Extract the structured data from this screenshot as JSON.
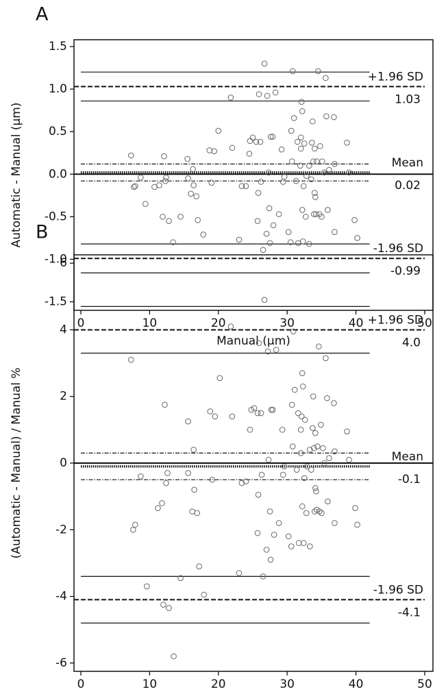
{
  "chart_data": [
    {
      "type": "scatter",
      "title": "A",
      "x_label": "Manual (µm)",
      "y_label": "Automatic - Manual (µm)",
      "xlim": [
        -1,
        51.2
      ],
      "xticks": [
        0,
        10,
        20,
        30,
        40,
        50
      ],
      "ylim": [
        -1.6,
        1.58
      ],
      "yticks": [
        {
          "value": -1.5,
          "label": "-1.5"
        },
        {
          "value": -1,
          "label": "-1.0"
        },
        -0.5,
        {
          "value": 0,
          "label": "0.0"
        },
        0.5,
        {
          "value": 1,
          "label": "1.0"
        },
        1.5
      ],
      "marker": "open-circle",
      "color": "#666666",
      "zero_line": true,
      "ci_xlim": [
        0,
        42
      ],
      "x": [
        7.3,
        7.7,
        7.9,
        8.7,
        9.4,
        10.7,
        11.4,
        11.9,
        12.1,
        12.3,
        12.4,
        12.8,
        13.4,
        14.5,
        15.5,
        15.6,
        16.0,
        16.3,
        16.4,
        16.8,
        17.0,
        17.8,
        18.7,
        19.0,
        19.4,
        20.0,
        21.8,
        22.0,
        23.0,
        23.4,
        24.0,
        24.5,
        24.6,
        25.0,
        25.5,
        25.7,
        25.8,
        25.9,
        26.1,
        26.2,
        26.5,
        26.7,
        27.0,
        27.1,
        27.3,
        27.4,
        27.5,
        27.6,
        27.9,
        28.0,
        28.3,
        28.8,
        29.2,
        29.4,
        29.6,
        30.2,
        30.5,
        30.6,
        30.7,
        30.8,
        31.0,
        31.3,
        31.5,
        31.6,
        31.9,
        32.0,
        32.0,
        32.1,
        32.2,
        32.2,
        32.3,
        32.4,
        32.5,
        32.7,
        32.8,
        33.2,
        33.2,
        33.5,
        33.6,
        33.7,
        33.8,
        33.9,
        34.0,
        34.0,
        34.1,
        34.2,
        34.3,
        34.5,
        34.7,
        34.8,
        35.0,
        35.1,
        35.4,
        35.6,
        35.7,
        35.9,
        36.1,
        36.8,
        36.9,
        36.9,
        38.7,
        39.0,
        39.8,
        40.2
      ],
      "values": [
        0.22,
        -0.15,
        -0.14,
        -0.04,
        -0.35,
        -0.15,
        -0.13,
        -0.5,
        0.21,
        -0.08,
        -0.04,
        -0.55,
        -0.8,
        -0.5,
        0.18,
        -0.05,
        -0.23,
        0.06,
        -0.13,
        -0.26,
        -0.54,
        -0.71,
        0.28,
        -0.1,
        0.27,
        0.51,
        0.9,
        0.31,
        -0.77,
        -0.14,
        -0.14,
        0.24,
        0.39,
        0.43,
        0.38,
        -0.55,
        -0.22,
        0.94,
        0.38,
        -0.09,
        -0.89,
        1.3,
        -0.7,
        0.92,
        0.02,
        -0.4,
        -0.81,
        0.44,
        0.44,
        -0.6,
        0.96,
        -0.47,
        0.29,
        -0.09,
        -0.03,
        -0.68,
        -0.8,
        0.51,
        0.15,
        1.21,
        0.66,
        -0.08,
        0.38,
        -0.81,
        0.1,
        0.3,
        0.43,
        0.85,
        -0.42,
        0.74,
        -0.79,
        -0.14,
        0.36,
        -0.5,
        -0.02,
        0.1,
        -0.82,
        -0.06,
        0.37,
        0.62,
        0.15,
        -0.47,
        -0.22,
        0.3,
        -0.27,
        -0.47,
        0.15,
        1.21,
        -0.47,
        0.33,
        -0.5,
        0.15,
        0.02,
        1.13,
        0.68,
        -0.42,
        0.05,
        0.67,
        -0.68,
        0.12,
        0.37,
        0.02,
        -0.54,
        -0.75
      ],
      "limits": [
        {
          "name": "+1.96 SD",
          "value": 1.03,
          "value_label": "1.03",
          "ci": [
            0.86,
            1.2
          ],
          "style": "dashed",
          "ci_style": "solid"
        },
        {
          "name": "Mean",
          "value": 0.02,
          "value_label": "0.02",
          "ci": [
            -0.08,
            0.12
          ],
          "style": "dotted",
          "ci_style": "dashdot"
        },
        {
          "name": "-1.96 SD",
          "value": -0.99,
          "value_label": "-0.99",
          "ci": [
            -1.16,
            -0.82
          ],
          "style": "dashed",
          "ci_style": "solid"
        }
      ]
    },
    {
      "type": "scatter",
      "title": "B",
      "x_label": "Manual (µm)",
      "y_label": "(Automatic - Manual) / Manual %",
      "xlim": [
        -1,
        51.2
      ],
      "xticks": [
        0,
        10,
        20,
        30,
        40,
        50
      ],
      "ylim": [
        -6.25,
        6.25
      ],
      "yticks": [
        -6,
        -4,
        -2,
        0,
        2,
        4,
        6
      ],
      "marker": "open-circle",
      "color": "#666666",
      "zero_line": true,
      "ci_xlim": [
        0,
        42
      ],
      "x": [
        7.3,
        7.6,
        7.9,
        8.7,
        9.6,
        11.2,
        11.8,
        12.0,
        12.2,
        12.4,
        12.6,
        12.8,
        13.5,
        14.5,
        15.6,
        15.6,
        16.2,
        16.4,
        16.5,
        16.9,
        17.2,
        17.9,
        18.8,
        19.1,
        19.5,
        20.2,
        21.8,
        22.0,
        23.0,
        23.4,
        24.0,
        24.6,
        24.8,
        25.2,
        25.7,
        25.7,
        25.8,
        25.9,
        26.2,
        26.3,
        26.5,
        26.7,
        27.0,
        27.2,
        27.3,
        27.5,
        27.6,
        27.7,
        27.9,
        28.1,
        28.4,
        28.8,
        29.3,
        29.4,
        29.6,
        30.2,
        30.6,
        30.7,
        30.8,
        30.9,
        31.1,
        31.4,
        31.6,
        31.7,
        32.0,
        32.0,
        32.1,
        32.2,
        32.2,
        32.3,
        32.4,
        32.5,
        32.6,
        32.8,
        32.9,
        33.3,
        33.3,
        33.5,
        33.7,
        33.8,
        33.9,
        34.0,
        34.1,
        34.1,
        34.2,
        34.3,
        34.4,
        34.6,
        34.7,
        34.9,
        35.0,
        35.2,
        35.4,
        35.6,
        35.8,
        35.9,
        36.1,
        36.8,
        36.9,
        36.9,
        38.7,
        39.0,
        39.9,
        40.2
      ],
      "values": [
        3.1,
        -2.0,
        -1.85,
        -0.4,
        -3.7,
        -1.35,
        -1.2,
        -4.25,
        1.75,
        -0.6,
        -0.3,
        -4.35,
        -5.8,
        -3.45,
        1.25,
        -0.3,
        -1.45,
        0.4,
        -0.8,
        -1.5,
        -3.1,
        -3.95,
        1.55,
        -0.5,
        1.4,
        2.55,
        4.1,
        1.4,
        -3.3,
        -0.6,
        -0.55,
        1.0,
        1.6,
        1.65,
        1.5,
        -2.1,
        -0.95,
        3.6,
        1.5,
        -0.35,
        -3.4,
        4.9,
        -2.6,
        3.35,
        0.1,
        -1.45,
        -2.9,
        1.6,
        1.6,
        -2.15,
        3.4,
        -1.8,
        1.0,
        -0.35,
        -0.1,
        -2.2,
        -2.5,
        1.75,
        0.5,
        3.95,
        2.2,
        -0.2,
        1.5,
        -2.4,
        0.3,
        1.0,
        1.4,
        2.7,
        -1.3,
        2.3,
        -2.4,
        -0.45,
        1.3,
        -1.5,
        -0.1,
        0.4,
        -2.5,
        -0.2,
        1.05,
        2.0,
        0.45,
        -1.45,
        -0.75,
        0.9,
        -0.85,
        -1.4,
        0.5,
        3.5,
        -1.45,
        1.15,
        -1.5,
        0.45,
        0.0,
        3.15,
        1.95,
        -1.15,
        0.15,
        1.8,
        -1.8,
        0.35,
        0.95,
        0.1,
        -1.35,
        -1.85
      ],
      "limits": [
        {
          "name": "+1.96 SD",
          "value": 4,
          "value_label": "4.0",
          "ci": [
            3.3,
            4.7
          ],
          "style": "dashed",
          "ci_style": "solid"
        },
        {
          "name": "Mean",
          "value": -0.1,
          "value_label": "-0.1",
          "ci": [
            -0.5,
            0.3
          ],
          "style": "dotted",
          "ci_style": "dashdot"
        },
        {
          "name": "-1.96 SD",
          "value": -4.1,
          "value_label": "-4.1",
          "ci": [
            -4.8,
            -3.4
          ],
          "style": "dashed",
          "ci_style": "solid"
        }
      ]
    }
  ]
}
